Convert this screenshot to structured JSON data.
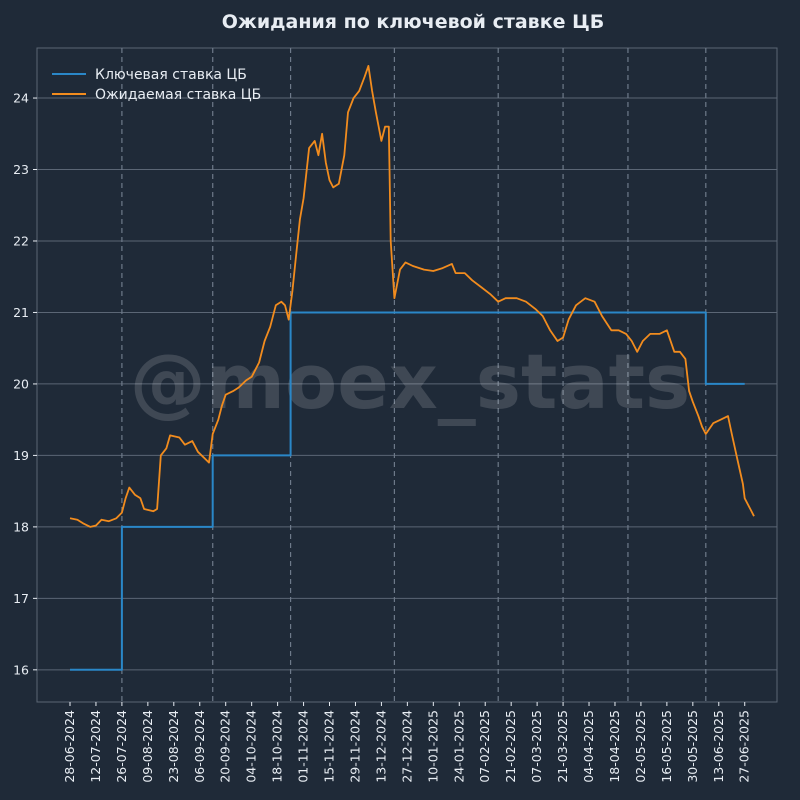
{
  "chart_data": {
    "type": "line",
    "title": "Ожидания по ключевой ставке ЦБ",
    "watermark": "@moex_stats",
    "xlabel": "",
    "ylabel": "",
    "x_start": "28-06-2024",
    "x_end": "02-07-2025",
    "x_ticks": [
      "28-06-2024",
      "12-07-2024",
      "26-07-2024",
      "09-08-2024",
      "23-08-2024",
      "06-09-2024",
      "20-09-2024",
      "04-10-2024",
      "18-10-2024",
      "01-11-2024",
      "15-11-2024",
      "29-11-2024",
      "13-12-2024",
      "27-12-2024",
      "10-01-2025",
      "24-01-2025",
      "07-02-2025",
      "21-02-2025",
      "07-03-2025",
      "21-03-2025",
      "04-04-2025",
      "18-04-2025",
      "02-05-2025",
      "16-05-2025",
      "30-05-2025",
      "13-06-2025",
      "27-06-2025"
    ],
    "y_ticks": [
      16,
      17,
      18,
      19,
      20,
      21,
      22,
      23,
      24
    ],
    "ylim": [
      15.55,
      24.7
    ],
    "grid": "horizontal",
    "legend_position": "top-left",
    "event_dates": [
      "26-07-2024",
      "13-09-2024",
      "25-10-2024",
      "20-12-2024",
      "14-02-2025",
      "21-03-2025",
      "25-04-2025",
      "06-06-2025"
    ],
    "colors": {
      "background": "#1f2a38",
      "grid": "#5b6675",
      "text": "#e8edf3",
      "event_line": "#6e7a8a"
    },
    "series": [
      {
        "name": "Ключевая ставка ЦБ",
        "color": "#2a87c8",
        "points": [
          [
            "28-06-2024",
            16
          ],
          [
            "26-07-2024",
            16
          ],
          [
            "26-07-2024",
            18
          ],
          [
            "13-09-2024",
            18
          ],
          [
            "13-09-2024",
            19
          ],
          [
            "25-10-2024",
            19
          ],
          [
            "25-10-2024",
            21
          ],
          [
            "06-06-2025",
            21
          ],
          [
            "06-06-2025",
            20
          ],
          [
            "27-06-2025",
            20
          ]
        ]
      },
      {
        "name": "Ожидаемая ставка ЦБ",
        "color": "#f28c1e",
        "points": [
          [
            "28-06-2024",
            18.12
          ],
          [
            "02-07-2024",
            18.1
          ],
          [
            "05-07-2024",
            18.05
          ],
          [
            "09-07-2024",
            18.0
          ],
          [
            "12-07-2024",
            18.02
          ],
          [
            "15-07-2024",
            18.1
          ],
          [
            "19-07-2024",
            18.08
          ],
          [
            "23-07-2024",
            18.12
          ],
          [
            "26-07-2024",
            18.2
          ],
          [
            "28-07-2024",
            18.4
          ],
          [
            "30-07-2024",
            18.55
          ],
          [
            "02-08-2024",
            18.45
          ],
          [
            "05-08-2024",
            18.4
          ],
          [
            "07-08-2024",
            18.25
          ],
          [
            "12-08-2024",
            18.22
          ],
          [
            "14-08-2024",
            18.25
          ],
          [
            "16-08-2024",
            19.0
          ],
          [
            "19-08-2024",
            19.1
          ],
          [
            "21-08-2024",
            19.28
          ],
          [
            "26-08-2024",
            19.25
          ],
          [
            "29-08-2024",
            19.15
          ],
          [
            "02-09-2024",
            19.2
          ],
          [
            "05-09-2024",
            19.05
          ],
          [
            "09-09-2024",
            18.95
          ],
          [
            "11-09-2024",
            18.9
          ],
          [
            "13-09-2024",
            19.3
          ],
          [
            "16-09-2024",
            19.5
          ],
          [
            "18-09-2024",
            19.7
          ],
          [
            "20-09-2024",
            19.85
          ],
          [
            "24-09-2024",
            19.9
          ],
          [
            "27-09-2024",
            19.95
          ],
          [
            "01-10-2024",
            20.05
          ],
          [
            "04-10-2024",
            20.1
          ],
          [
            "08-10-2024",
            20.3
          ],
          [
            "11-10-2024",
            20.6
          ],
          [
            "14-10-2024",
            20.8
          ],
          [
            "17-10-2024",
            21.1
          ],
          [
            "20-10-2024",
            21.15
          ],
          [
            "22-10-2024",
            21.1
          ],
          [
            "24-10-2024",
            20.9
          ],
          [
            "26-10-2024",
            21.3
          ],
          [
            "28-10-2024",
            21.8
          ],
          [
            "30-10-2024",
            22.3
          ],
          [
            "01-11-2024",
            22.6
          ],
          [
            "04-11-2024",
            23.3
          ],
          [
            "07-11-2024",
            23.4
          ],
          [
            "09-11-2024",
            23.2
          ],
          [
            "11-11-2024",
            23.5
          ],
          [
            "13-11-2024",
            23.1
          ],
          [
            "15-11-2024",
            22.85
          ],
          [
            "17-11-2024",
            22.75
          ],
          [
            "20-11-2024",
            22.8
          ],
          [
            "23-11-2024",
            23.2
          ],
          [
            "25-11-2024",
            23.8
          ],
          [
            "28-11-2024",
            24.0
          ],
          [
            "01-12-2024",
            24.1
          ],
          [
            "04-12-2024",
            24.3
          ],
          [
            "06-12-2024",
            24.45
          ],
          [
            "08-12-2024",
            24.1
          ],
          [
            "10-12-2024",
            23.8
          ],
          [
            "13-12-2024",
            23.4
          ],
          [
            "15-12-2024",
            23.6
          ],
          [
            "17-12-2024",
            23.6
          ],
          [
            "18-12-2024",
            22.0
          ],
          [
            "20-12-2024",
            21.2
          ],
          [
            "23-12-2024",
            21.6
          ],
          [
            "26-12-2024",
            21.7
          ],
          [
            "30-12-2024",
            21.65
          ],
          [
            "05-01-2025",
            21.6
          ],
          [
            "10-01-2025",
            21.58
          ],
          [
            "15-01-2025",
            21.62
          ],
          [
            "20-01-2025",
            21.68
          ],
          [
            "22-01-2025",
            21.55
          ],
          [
            "27-01-2025",
            21.55
          ],
          [
            "31-01-2025",
            21.45
          ],
          [
            "05-02-2025",
            21.35
          ],
          [
            "10-02-2025",
            21.25
          ],
          [
            "14-02-2025",
            21.15
          ],
          [
            "18-02-2025",
            21.2
          ],
          [
            "24-02-2025",
            21.2
          ],
          [
            "01-03-2025",
            21.15
          ],
          [
            "06-03-2025",
            21.05
          ],
          [
            "10-03-2025",
            20.95
          ],
          [
            "14-03-2025",
            20.75
          ],
          [
            "18-03-2025",
            20.6
          ],
          [
            "21-03-2025",
            20.65
          ],
          [
            "24-03-2025",
            20.9
          ],
          [
            "28-03-2025",
            21.1
          ],
          [
            "02-04-2025",
            21.2
          ],
          [
            "07-04-2025",
            21.15
          ],
          [
            "11-04-2025",
            20.95
          ],
          [
            "16-04-2025",
            20.75
          ],
          [
            "20-04-2025",
            20.75
          ],
          [
            "24-04-2025",
            20.7
          ],
          [
            "27-04-2025",
            20.6
          ],
          [
            "30-04-2025",
            20.45
          ],
          [
            "03-05-2025",
            20.6
          ],
          [
            "07-05-2025",
            20.7
          ],
          [
            "12-05-2025",
            20.7
          ],
          [
            "16-05-2025",
            20.75
          ],
          [
            "20-05-2025",
            20.45
          ],
          [
            "23-05-2025",
            20.45
          ],
          [
            "26-05-2025",
            20.35
          ],
          [
            "28-05-2025",
            19.9
          ],
          [
            "30-05-2025",
            19.75
          ],
          [
            "02-06-2025",
            19.55
          ],
          [
            "04-06-2025",
            19.4
          ],
          [
            "06-06-2025",
            19.3
          ],
          [
            "10-06-2025",
            19.45
          ],
          [
            "14-06-2025",
            19.5
          ],
          [
            "18-06-2025",
            19.55
          ],
          [
            "20-06-2025",
            19.3
          ],
          [
            "23-06-2025",
            18.95
          ],
          [
            "26-06-2025",
            18.6
          ],
          [
            "27-06-2025",
            18.4
          ],
          [
            "30-06-2025",
            18.25
          ],
          [
            "02-07-2025",
            18.15
          ]
        ]
      }
    ]
  }
}
